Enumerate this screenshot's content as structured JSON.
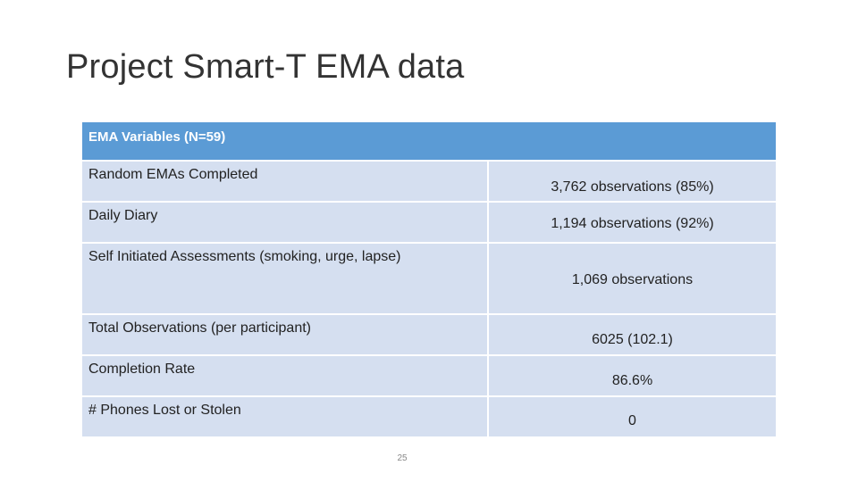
{
  "slide": {
    "title": "Project Smart-T EMA data",
    "page_number": "25"
  },
  "table": {
    "header": "EMA Variables (N=59)",
    "rows": [
      {
        "label": "Random EMAs Completed",
        "value": "3,762 observations (85%)"
      },
      {
        "label": "Daily Diary",
        "value": "1,194 observations (92%)"
      },
      {
        "label": "Self Initiated Assessments (smoking, urge, lapse)",
        "value": "1,069 observations"
      },
      {
        "label": "Total Observations (per participant)",
        "value": "6025 (102.1)"
      },
      {
        "label": "Completion Rate",
        "value": "86.6%"
      },
      {
        "label": "# Phones Lost or Stolen",
        "value": "0"
      }
    ]
  },
  "colors": {
    "header_bg": "#5b9bd5",
    "row_bg": "#d5dff0"
  }
}
